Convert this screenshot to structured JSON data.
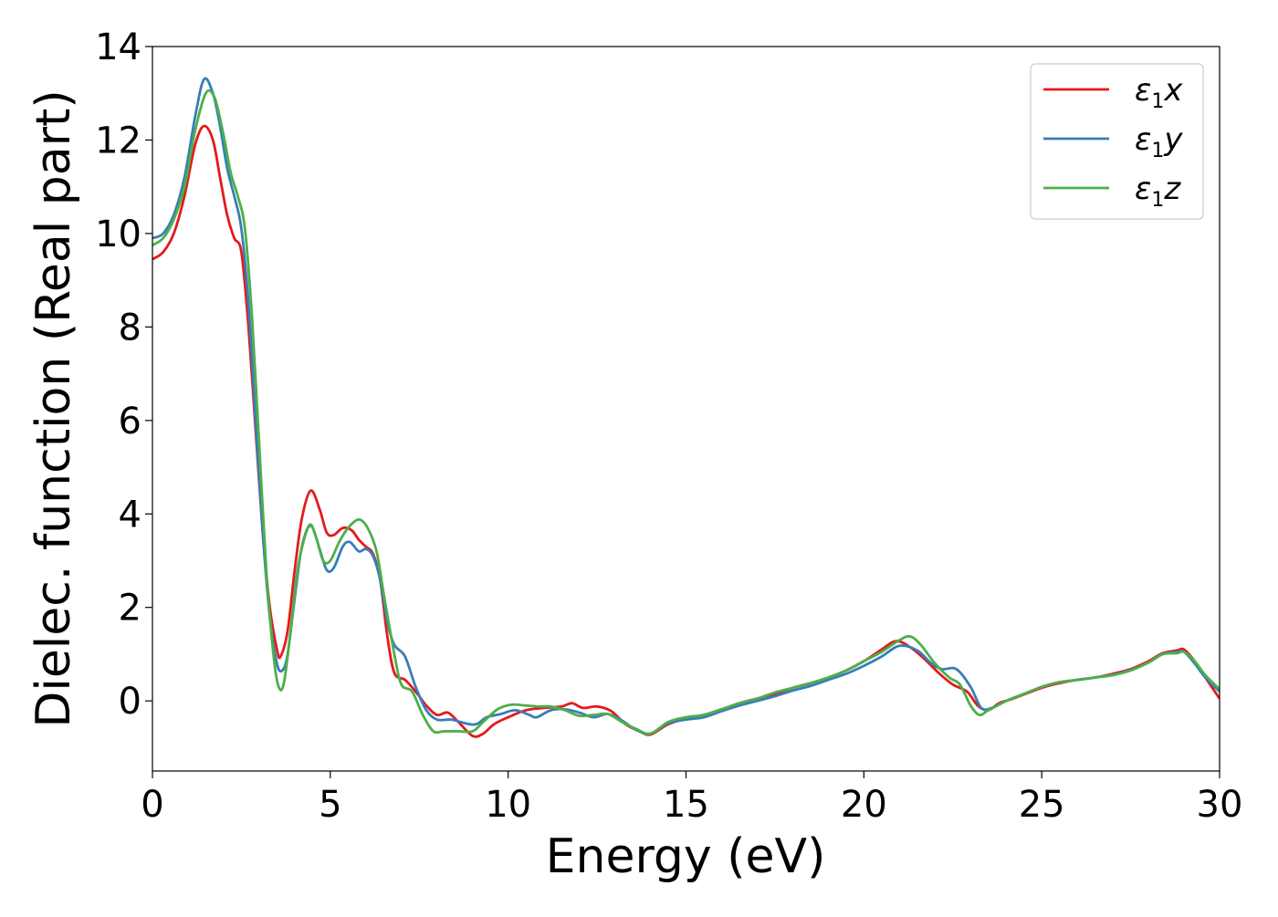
{
  "chart_data": {
    "type": "line",
    "title": "",
    "xlabel": "Energy (eV)",
    "ylabel": "Dielec. function (Real part)",
    "xlim": [
      0,
      30
    ],
    "ylim": [
      -1.5,
      14
    ],
    "x_ticks": [
      0,
      5,
      10,
      15,
      20,
      25,
      30
    ],
    "y_ticks": [
      0,
      2,
      4,
      6,
      8,
      10,
      12,
      14
    ],
    "x_tick_labels": [
      "0",
      "5",
      "10",
      "15",
      "20",
      "25",
      "30"
    ],
    "y_tick_labels": [
      "0",
      "2",
      "4",
      "6",
      "8",
      "10",
      "12",
      "14"
    ],
    "grid": false,
    "legend_position": "top-right",
    "legend_base": "ε",
    "legend_sub": "1",
    "series": [
      {
        "name": "ε1x",
        "legend_suffix": "x",
        "color": "#e41a1c",
        "points": [
          [
            0,
            9.45
          ],
          [
            0.3,
            9.6
          ],
          [
            0.6,
            10.0
          ],
          [
            0.9,
            10.8
          ],
          [
            1.2,
            11.9
          ],
          [
            1.45,
            12.3
          ],
          [
            1.7,
            12.0
          ],
          [
            1.9,
            11.2
          ],
          [
            2.1,
            10.4
          ],
          [
            2.3,
            9.9
          ],
          [
            2.5,
            9.6
          ],
          [
            2.7,
            8.0
          ],
          [
            2.9,
            5.8
          ],
          [
            3.1,
            3.6
          ],
          [
            3.3,
            2.0
          ],
          [
            3.5,
            1.1
          ],
          [
            3.6,
            0.95
          ],
          [
            3.8,
            1.5
          ],
          [
            4.0,
            2.8
          ],
          [
            4.2,
            3.9
          ],
          [
            4.45,
            4.5
          ],
          [
            4.7,
            4.1
          ],
          [
            4.9,
            3.6
          ],
          [
            5.1,
            3.55
          ],
          [
            5.35,
            3.7
          ],
          [
            5.6,
            3.65
          ],
          [
            5.8,
            3.45
          ],
          [
            6.0,
            3.3
          ],
          [
            6.2,
            3.15
          ],
          [
            6.4,
            2.6
          ],
          [
            6.6,
            1.4
          ],
          [
            6.8,
            0.6
          ],
          [
            7.1,
            0.45
          ],
          [
            7.4,
            0.2
          ],
          [
            7.7,
            -0.1
          ],
          [
            8.0,
            -0.3
          ],
          [
            8.3,
            -0.25
          ],
          [
            8.6,
            -0.45
          ],
          [
            9.0,
            -0.75
          ],
          [
            9.3,
            -0.7
          ],
          [
            9.6,
            -0.5
          ],
          [
            10.0,
            -0.35
          ],
          [
            10.5,
            -0.2
          ],
          [
            11.0,
            -0.15
          ],
          [
            11.5,
            -0.12
          ],
          [
            11.8,
            -0.05
          ],
          [
            12.1,
            -0.15
          ],
          [
            12.5,
            -0.12
          ],
          [
            12.9,
            -0.22
          ],
          [
            13.3,
            -0.5
          ],
          [
            13.7,
            -0.65
          ],
          [
            14.0,
            -0.72
          ],
          [
            14.5,
            -0.5
          ],
          [
            15.0,
            -0.38
          ],
          [
            15.5,
            -0.3
          ],
          [
            16.0,
            -0.18
          ],
          [
            16.5,
            -0.05
          ],
          [
            17.0,
            0.05
          ],
          [
            17.5,
            0.15
          ],
          [
            18.0,
            0.28
          ],
          [
            18.5,
            0.38
          ],
          [
            19.0,
            0.5
          ],
          [
            19.5,
            0.65
          ],
          [
            20.0,
            0.85
          ],
          [
            20.5,
            1.1
          ],
          [
            20.9,
            1.28
          ],
          [
            21.3,
            1.15
          ],
          [
            21.7,
            0.9
          ],
          [
            22.1,
            0.6
          ],
          [
            22.5,
            0.35
          ],
          [
            22.9,
            0.2
          ],
          [
            23.2,
            -0.1
          ],
          [
            23.5,
            -0.2
          ],
          [
            23.8,
            -0.05
          ],
          [
            24.2,
            0.05
          ],
          [
            25.0,
            0.28
          ],
          [
            25.5,
            0.38
          ],
          [
            26.0,
            0.45
          ],
          [
            26.5,
            0.5
          ],
          [
            27.0,
            0.58
          ],
          [
            27.5,
            0.68
          ],
          [
            28.0,
            0.85
          ],
          [
            28.4,
            1.02
          ],
          [
            28.8,
            1.08
          ],
          [
            29.0,
            1.1
          ],
          [
            29.3,
            0.85
          ],
          [
            29.6,
            0.5
          ],
          [
            30.0,
            0.05
          ]
        ]
      },
      {
        "name": "ε1y",
        "legend_suffix": "y",
        "color": "#377eb8",
        "points": [
          [
            0,
            9.9
          ],
          [
            0.3,
            10.0
          ],
          [
            0.6,
            10.4
          ],
          [
            0.9,
            11.2
          ],
          [
            1.2,
            12.5
          ],
          [
            1.45,
            13.3
          ],
          [
            1.7,
            13.0
          ],
          [
            1.9,
            12.3
          ],
          [
            2.1,
            11.4
          ],
          [
            2.3,
            10.8
          ],
          [
            2.5,
            10.1
          ],
          [
            2.7,
            8.5
          ],
          [
            2.9,
            6.0
          ],
          [
            3.1,
            3.6
          ],
          [
            3.3,
            1.8
          ],
          [
            3.5,
            0.8
          ],
          [
            3.65,
            0.65
          ],
          [
            3.8,
            1.0
          ],
          [
            4.0,
            2.2
          ],
          [
            4.2,
            3.3
          ],
          [
            4.45,
            3.75
          ],
          [
            4.7,
            3.25
          ],
          [
            4.9,
            2.8
          ],
          [
            5.1,
            2.85
          ],
          [
            5.35,
            3.3
          ],
          [
            5.55,
            3.4
          ],
          [
            5.8,
            3.2
          ],
          [
            6.0,
            3.25
          ],
          [
            6.2,
            3.1
          ],
          [
            6.4,
            2.6
          ],
          [
            6.6,
            1.7
          ],
          [
            6.8,
            1.2
          ],
          [
            7.1,
            0.95
          ],
          [
            7.4,
            0.3
          ],
          [
            7.7,
            -0.2
          ],
          [
            8.0,
            -0.4
          ],
          [
            8.4,
            -0.4
          ],
          [
            8.8,
            -0.48
          ],
          [
            9.1,
            -0.5
          ],
          [
            9.4,
            -0.35
          ],
          [
            9.8,
            -0.28
          ],
          [
            10.2,
            -0.2
          ],
          [
            10.6,
            -0.3
          ],
          [
            10.8,
            -0.35
          ],
          [
            11.2,
            -0.2
          ],
          [
            11.6,
            -0.18
          ],
          [
            12.0,
            -0.25
          ],
          [
            12.4,
            -0.35
          ],
          [
            12.8,
            -0.28
          ],
          [
            13.2,
            -0.42
          ],
          [
            13.6,
            -0.62
          ],
          [
            14.0,
            -0.7
          ],
          [
            14.5,
            -0.48
          ],
          [
            15.0,
            -0.4
          ],
          [
            15.5,
            -0.35
          ],
          [
            16.0,
            -0.22
          ],
          [
            16.5,
            -0.1
          ],
          [
            17.0,
            0.0
          ],
          [
            17.5,
            0.1
          ],
          [
            18.0,
            0.22
          ],
          [
            18.5,
            0.32
          ],
          [
            19.0,
            0.45
          ],
          [
            19.5,
            0.58
          ],
          [
            20.0,
            0.75
          ],
          [
            20.5,
            0.95
          ],
          [
            21.0,
            1.18
          ],
          [
            21.5,
            1.08
          ],
          [
            21.9,
            0.8
          ],
          [
            22.2,
            0.68
          ],
          [
            22.6,
            0.68
          ],
          [
            23.0,
            0.3
          ],
          [
            23.3,
            -0.15
          ],
          [
            23.6,
            -0.15
          ],
          [
            24.0,
            0.0
          ],
          [
            24.5,
            0.15
          ],
          [
            25.0,
            0.3
          ],
          [
            25.5,
            0.4
          ],
          [
            26.0,
            0.45
          ],
          [
            26.5,
            0.5
          ],
          [
            27.0,
            0.56
          ],
          [
            27.5,
            0.66
          ],
          [
            28.0,
            0.82
          ],
          [
            28.4,
            1.0
          ],
          [
            28.8,
            1.05
          ],
          [
            29.0,
            1.05
          ],
          [
            29.3,
            0.8
          ],
          [
            29.6,
            0.5
          ],
          [
            30.0,
            0.2
          ]
        ]
      },
      {
        "name": "ε1z",
        "legend_suffix": "z",
        "color": "#4daf4a",
        "points": [
          [
            0,
            9.75
          ],
          [
            0.3,
            9.9
          ],
          [
            0.6,
            10.3
          ],
          [
            0.9,
            11.0
          ],
          [
            1.2,
            12.2
          ],
          [
            1.5,
            13.0
          ],
          [
            1.75,
            12.9
          ],
          [
            2.0,
            12.1
          ],
          [
            2.2,
            11.3
          ],
          [
            2.4,
            10.8
          ],
          [
            2.6,
            10.1
          ],
          [
            2.8,
            8.2
          ],
          [
            3.0,
            5.5
          ],
          [
            3.2,
            2.8
          ],
          [
            3.4,
            1.0
          ],
          [
            3.55,
            0.3
          ],
          [
            3.7,
            0.4
          ],
          [
            3.9,
            1.6
          ],
          [
            4.1,
            2.9
          ],
          [
            4.4,
            3.75
          ],
          [
            4.6,
            3.5
          ],
          [
            4.8,
            3.0
          ],
          [
            5.0,
            3.0
          ],
          [
            5.25,
            3.4
          ],
          [
            5.5,
            3.7
          ],
          [
            5.8,
            3.88
          ],
          [
            6.05,
            3.7
          ],
          [
            6.3,
            3.2
          ],
          [
            6.5,
            2.3
          ],
          [
            6.8,
            1.0
          ],
          [
            7.0,
            0.35
          ],
          [
            7.3,
            0.2
          ],
          [
            7.6,
            -0.3
          ],
          [
            7.9,
            -0.65
          ],
          [
            8.2,
            -0.65
          ],
          [
            8.6,
            -0.65
          ],
          [
            9.0,
            -0.65
          ],
          [
            9.3,
            -0.45
          ],
          [
            9.7,
            -0.18
          ],
          [
            10.1,
            -0.08
          ],
          [
            10.5,
            -0.1
          ],
          [
            10.9,
            -0.12
          ],
          [
            11.2,
            -0.12
          ],
          [
            11.6,
            -0.2
          ],
          [
            12.0,
            -0.32
          ],
          [
            12.4,
            -0.3
          ],
          [
            12.8,
            -0.28
          ],
          [
            13.2,
            -0.45
          ],
          [
            13.6,
            -0.6
          ],
          [
            14.0,
            -0.7
          ],
          [
            14.5,
            -0.45
          ],
          [
            15.0,
            -0.35
          ],
          [
            15.5,
            -0.3
          ],
          [
            16.0,
            -0.18
          ],
          [
            16.5,
            -0.05
          ],
          [
            17.0,
            0.05
          ],
          [
            17.5,
            0.18
          ],
          [
            18.0,
            0.28
          ],
          [
            18.5,
            0.38
          ],
          [
            19.0,
            0.5
          ],
          [
            19.5,
            0.65
          ],
          [
            20.0,
            0.85
          ],
          [
            20.5,
            1.05
          ],
          [
            21.0,
            1.3
          ],
          [
            21.3,
            1.38
          ],
          [
            21.6,
            1.2
          ],
          [
            22.0,
            0.8
          ],
          [
            22.4,
            0.5
          ],
          [
            22.7,
            0.35
          ],
          [
            23.0,
            -0.1
          ],
          [
            23.25,
            -0.3
          ],
          [
            23.5,
            -0.2
          ],
          [
            24.0,
            0.0
          ],
          [
            24.5,
            0.15
          ],
          [
            25.0,
            0.3
          ],
          [
            25.5,
            0.4
          ],
          [
            26.0,
            0.45
          ],
          [
            26.5,
            0.5
          ],
          [
            27.0,
            0.55
          ],
          [
            27.5,
            0.65
          ],
          [
            28.0,
            0.82
          ],
          [
            28.4,
            1.0
          ],
          [
            28.8,
            1.02
          ],
          [
            29.0,
            1.05
          ],
          [
            29.3,
            0.85
          ],
          [
            29.6,
            0.55
          ],
          [
            30.0,
            0.25
          ]
        ]
      }
    ]
  }
}
